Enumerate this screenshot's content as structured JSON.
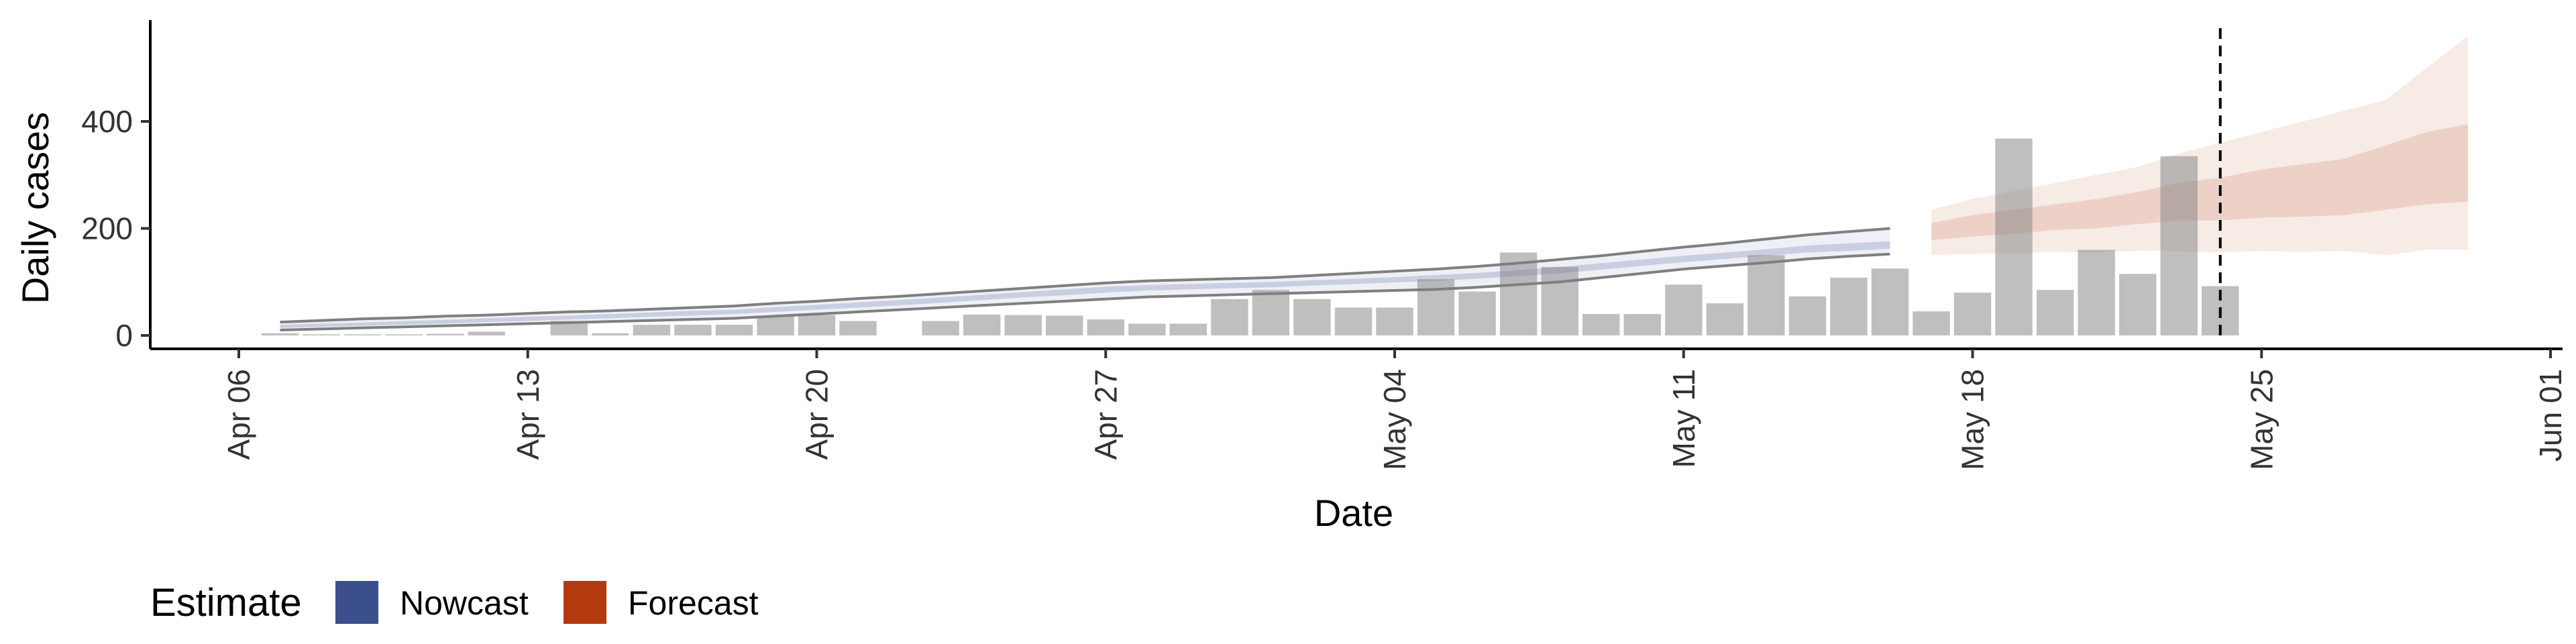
{
  "chart_data": {
    "type": "bar",
    "xlabel": "Date",
    "ylabel": "Daily cases",
    "x_range": [
      "2020-04-02",
      "2020-06-01"
    ],
    "ylim": [
      -25,
      590
    ],
    "y_ticks": [
      0,
      200,
      400
    ],
    "x_ticks": [
      {
        "date": "2020-04-06",
        "label": "Apr 06"
      },
      {
        "date": "2020-04-13",
        "label": "Apr 13"
      },
      {
        "date": "2020-04-20",
        "label": "Apr 20"
      },
      {
        "date": "2020-04-27",
        "label": "Apr 27"
      },
      {
        "date": "2020-05-04",
        "label": "May 04"
      },
      {
        "date": "2020-05-11",
        "label": "May 11"
      },
      {
        "date": "2020-05-18",
        "label": "May 18"
      },
      {
        "date": "2020-05-25",
        "label": "May 25"
      },
      {
        "date": "2020-06-01",
        "label": "Jun 01"
      }
    ],
    "reported_cases": {
      "dates": [
        "2020-04-07",
        "2020-04-08",
        "2020-04-09",
        "2020-04-10",
        "2020-04-11",
        "2020-04-12",
        "2020-04-13",
        "2020-04-14",
        "2020-04-15",
        "2020-04-16",
        "2020-04-17",
        "2020-04-18",
        "2020-04-19",
        "2020-04-20",
        "2020-04-21",
        "2020-04-22",
        "2020-04-23",
        "2020-04-24",
        "2020-04-25",
        "2020-04-26",
        "2020-04-27",
        "2020-04-28",
        "2020-04-29",
        "2020-04-30",
        "2020-05-01",
        "2020-05-02",
        "2020-05-03",
        "2020-05-04",
        "2020-05-05",
        "2020-05-06",
        "2020-05-07",
        "2020-05-08",
        "2020-05-09",
        "2020-05-10",
        "2020-05-11",
        "2020-05-12",
        "2020-05-13",
        "2020-05-14",
        "2020-05-15",
        "2020-05-16",
        "2020-05-17",
        "2020-05-18",
        "2020-05-19",
        "2020-05-20",
        "2020-05-21",
        "2020-05-22",
        "2020-05-23",
        "2020-05-24"
      ],
      "values": [
        4,
        2,
        2,
        2,
        3,
        7,
        0,
        27,
        4,
        20,
        20,
        20,
        37,
        38,
        27,
        0,
        27,
        39,
        38,
        37,
        30,
        22,
        22,
        68,
        85,
        68,
        52,
        52,
        105,
        82,
        155,
        128,
        40,
        40,
        95,
        60,
        150,
        73,
        108,
        125,
        45,
        80,
        368,
        85,
        160,
        115,
        335,
        92
      ]
    },
    "series": [
      {
        "name": "Nowcast",
        "color": "#3A4F8C",
        "dates": [
          "2020-04-07",
          "2020-04-08",
          "2020-04-09",
          "2020-04-10",
          "2020-04-11",
          "2020-04-12",
          "2020-04-13",
          "2020-04-14",
          "2020-04-15",
          "2020-04-16",
          "2020-04-17",
          "2020-04-18",
          "2020-04-19",
          "2020-04-20",
          "2020-04-21",
          "2020-04-22",
          "2020-04-23",
          "2020-04-24",
          "2020-04-25",
          "2020-04-26",
          "2020-04-27",
          "2020-04-28",
          "2020-04-29",
          "2020-04-30",
          "2020-05-01",
          "2020-05-02",
          "2020-05-03",
          "2020-05-04",
          "2020-05-05",
          "2020-05-06",
          "2020-05-07",
          "2020-05-08",
          "2020-05-09",
          "2020-05-10",
          "2020-05-11",
          "2020-05-12",
          "2020-05-13",
          "2020-05-14",
          "2020-05-15",
          "2020-05-16"
        ],
        "lower90": [
          10,
          12,
          14,
          16,
          18,
          20,
          22,
          24,
          26,
          28,
          30,
          32,
          36,
          40,
          44,
          48,
          52,
          56,
          60,
          64,
          68,
          72,
          74,
          76,
          78,
          80,
          82,
          84,
          86,
          90,
          95,
          100,
          108,
          116,
          124,
          130,
          136,
          143,
          148,
          152
        ],
        "lower50": [
          14,
          16,
          18,
          20,
          22,
          25,
          27,
          30,
          32,
          35,
          37,
          40,
          44,
          48,
          52,
          56,
          61,
          66,
          71,
          75,
          80,
          84,
          86,
          88,
          90,
          93,
          96,
          99,
          102,
          106,
          111,
          116,
          123,
          130,
          137,
          143,
          149,
          155,
          158,
          162
        ],
        "median": [
          17,
          19,
          21,
          23,
          26,
          28,
          31,
          33,
          36,
          39,
          41,
          44,
          48,
          52,
          56,
          61,
          66,
          71,
          76,
          81,
          85,
          89,
          91,
          93,
          95,
          98,
          101,
          104,
          107,
          111,
          116,
          122,
          129,
          136,
          143,
          149,
          155,
          161,
          165,
          169
        ],
        "upper50": [
          20,
          22,
          24,
          27,
          29,
          32,
          35,
          37,
          40,
          43,
          46,
          48,
          53,
          57,
          62,
          66,
          71,
          76,
          81,
          86,
          91,
          94,
          96,
          98,
          100,
          103,
          106,
          109,
          113,
          117,
          122,
          128,
          135,
          142,
          149,
          155,
          161,
          168,
          172,
          176
        ],
        "upper90": [
          25,
          28,
          31,
          33,
          36,
          38,
          41,
          44,
          46,
          49,
          52,
          55,
          60,
          64,
          69,
          73,
          78,
          83,
          88,
          93,
          98,
          102,
          104,
          106,
          108,
          112,
          116,
          120,
          124,
          129,
          135,
          142,
          149,
          157,
          165,
          172,
          180,
          188,
          194,
          200
        ]
      },
      {
        "name": "Forecast",
        "color": "#B33A0E",
        "dates": [
          "2020-05-17",
          "2020-05-18",
          "2020-05-19",
          "2020-05-20",
          "2020-05-21",
          "2020-05-22",
          "2020-05-23",
          "2020-05-24",
          "2020-05-25",
          "2020-05-26",
          "2020-05-27",
          "2020-05-28",
          "2020-05-29",
          "2020-05-30"
        ],
        "lower90": [
          150,
          152,
          154,
          156,
          155,
          158,
          158,
          155,
          158,
          156,
          158,
          150,
          160,
          160
        ],
        "lower50": [
          178,
          185,
          190,
          197,
          200,
          208,
          215,
          215,
          220,
          222,
          225,
          235,
          245,
          250
        ],
        "upper50": [
          210,
          225,
          235,
          245,
          255,
          268,
          285,
          295,
          310,
          320,
          330,
          355,
          380,
          395
        ],
        "upper90": [
          235,
          255,
          270,
          285,
          300,
          315,
          340,
          360,
          380,
          400,
          420,
          440,
          500,
          560
        ]
      }
    ],
    "vline_date": "2020-05-24",
    "legend": {
      "title": "Estimate",
      "position": "bottom-left",
      "entries": [
        {
          "label": "Nowcast",
          "color": "#3A4F8C"
        },
        {
          "label": "Forecast",
          "color": "#B33A0E"
        }
      ]
    }
  }
}
